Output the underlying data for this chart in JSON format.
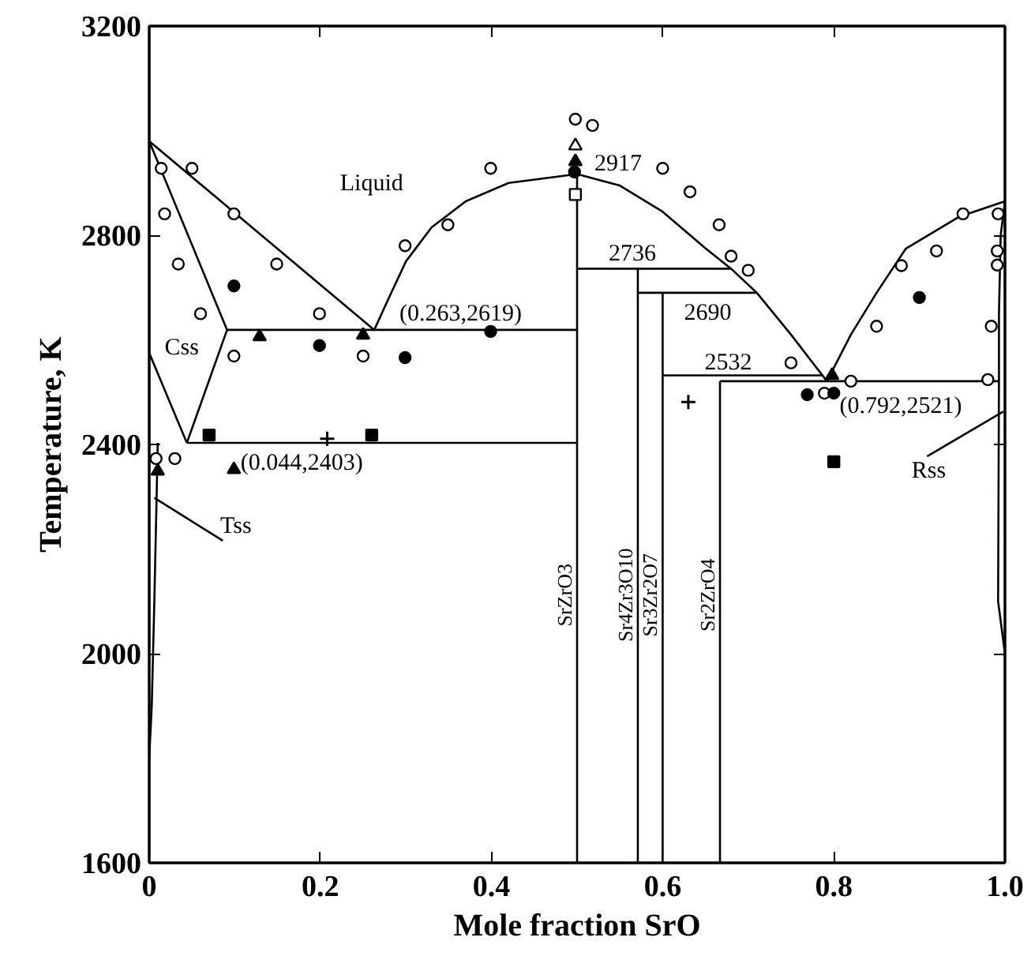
{
  "chart_data": {
    "type": "line",
    "xlabel": "Mole fraction SrO",
    "ylabel": "Temperature, K",
    "xlim": [
      0,
      1.0
    ],
    "ylim": [
      1600,
      3200
    ],
    "xticks": [
      0,
      0.2,
      0.4,
      0.6,
      0.8,
      {
        "value": 1.0,
        "label": "1.0"
      }
    ],
    "yticks": [
      1600,
      2000,
      2400,
      2800,
      3200
    ],
    "series": [
      {
        "color": "#000000",
        "marker": "none",
        "x": [
          0,
          0.263
        ],
        "values": [
          2980,
          2619
        ]
      },
      {
        "color": "#000000",
        "marker": "none",
        "x": [
          0.263,
          0.28,
          0.3,
          0.33,
          0.37,
          0.42,
          0.5,
          0.55,
          0.6,
          0.65,
          0.68,
          0.71,
          0.75,
          0.792
        ],
        "values": [
          2619,
          2680,
          2750,
          2815,
          2865,
          2900,
          2917,
          2895,
          2845,
          2775,
          2736,
          2690,
          2610,
          2521
        ]
      },
      {
        "color": "#000000",
        "marker": "none",
        "x": [
          0.792,
          0.82,
          0.85,
          0.884,
          0.946,
          1.0
        ],
        "values": [
          2521,
          2610,
          2690,
          2774,
          2835,
          2865
        ]
      },
      {
        "color": "#000000",
        "marker": "none",
        "x": [
          0,
          0.091,
          0.044
        ],
        "values": [
          2980,
          2619,
          2403
        ]
      },
      {
        "color": "#000000",
        "marker": "none",
        "x": [
          0,
          0.044
        ],
        "values": [
          2575,
          2403
        ]
      },
      {
        "color": "#000000",
        "marker": "none",
        "x": [
          0.091,
          0.5
        ],
        "values": [
          2619,
          2619
        ]
      },
      {
        "color": "#000000",
        "marker": "none",
        "x": [
          0.044,
          0.5
        ],
        "values": [
          2403,
          2403
        ]
      },
      {
        "color": "#000000",
        "marker": "none",
        "x": [
          0.01,
          0.008,
          0.006,
          0.003,
          0
        ],
        "values": [
          2403,
          2250,
          2100,
          1900,
          1800
        ]
      },
      {
        "color": "#000000",
        "marker": "none",
        "x": [
          0.006,
          0.086
        ],
        "values": [
          2298,
          2216
        ]
      },
      {
        "color": "#000000",
        "marker": "none",
        "name": "SrZrO3",
        "x": [
          0.5,
          0.5
        ],
        "values": [
          1600,
          2917
        ]
      },
      {
        "color": "#000000",
        "marker": "none",
        "x": [
          0.5,
          0.68
        ],
        "values": [
          2736,
          2736
        ]
      },
      {
        "color": "#000000",
        "marker": "none",
        "name": "Sr4Zr3O10",
        "x": [
          0.571,
          0.571
        ],
        "values": [
          1600,
          2736
        ]
      },
      {
        "color": "#000000",
        "marker": "none",
        "x": [
          0.571,
          0.709
        ],
        "values": [
          2690,
          2690
        ]
      },
      {
        "color": "#000000",
        "marker": "none",
        "name": "Sr3Zr2O7",
        "x": [
          0.6,
          0.6
        ],
        "values": [
          1600,
          2690
        ]
      },
      {
        "color": "#000000",
        "marker": "none",
        "x": [
          0.6,
          0.786
        ],
        "values": [
          2532,
          2532
        ]
      },
      {
        "color": "#000000",
        "marker": "none",
        "name": "Sr2ZrO4",
        "x": [
          0.667,
          0.667
        ],
        "values": [
          1600,
          2521
        ]
      },
      {
        "color": "#000000",
        "marker": "none",
        "x": [
          0.667,
          0.993
        ],
        "values": [
          2521,
          2521
        ]
      },
      {
        "color": "#000000",
        "marker": "none",
        "x": [
          1.0,
          0.995,
          0.993,
          0.993,
          0.992,
          1.0
        ],
        "values": [
          2865,
          2800,
          2650,
          2521,
          2100,
          2000
        ]
      },
      {
        "color": "#000000",
        "marker": "none",
        "x": [
          0.909,
          0.998
        ],
        "values": [
          2377,
          2463
        ]
      },
      {
        "type": "scatter",
        "color": "#ffffff",
        "marker": "circle",
        "x": [
          0.014,
          0.05,
          0.018,
          0.099,
          0.034,
          0.149,
          0.06,
          0.199,
          0.099,
          0.25,
          0.299,
          0.349,
          0.399,
          0.008,
          0.03,
          0.498,
          0.518,
          0.6,
          0.632,
          0.666,
          0.68,
          0.7,
          0.75,
          0.789,
          0.82,
          0.85,
          0.879,
          0.92,
          0.951,
          0.992,
          0.991,
          0.991,
          0.984,
          0.98
        ],
        "values": [
          2928,
          2928,
          2841,
          2841,
          2745,
          2745,
          2650,
          2650,
          2569,
          2569,
          2780,
          2820,
          2928,
          2373,
          2373,
          3022,
          3010,
          2928,
          2883,
          2820,
          2760,
          2733,
          2556,
          2498,
          2521,
          2626,
          2742,
          2770,
          2841,
          2841,
          2770,
          2743,
          2626,
          2524
        ]
      },
      {
        "type": "scatter",
        "color": "#000000",
        "marker": "circle",
        "x": [
          0.099,
          0.199,
          0.299,
          0.399,
          0.769,
          0.8,
          0.9,
          0.497
        ],
        "values": [
          2703,
          2589,
          2566,
          2616,
          2495,
          2498,
          2681,
          2921
        ]
      },
      {
        "type": "scatter",
        "color": "#000000",
        "marker": "triangle",
        "x": [
          0.129,
          0.25,
          0.01,
          0.099,
          0.798,
          0.498
        ],
        "values": [
          2606,
          2609,
          2349,
          2352,
          2532,
          2941
        ]
      },
      {
        "type": "scatter",
        "color": "#ffffff",
        "marker": "triangle",
        "x": [
          0.498
        ],
        "values": [
          2971
        ]
      },
      {
        "type": "scatter",
        "color": "#ffffff",
        "marker": "square",
        "x": [
          0.498
        ],
        "values": [
          2878
        ]
      },
      {
        "type": "scatter",
        "color": "#000000",
        "marker": "square",
        "x": [
          0.07,
          0.26,
          0.8
        ],
        "values": [
          2418,
          2418,
          2367
        ]
      },
      {
        "type": "scatter",
        "color": "#000000",
        "marker": "cross",
        "x": [
          0.208,
          0.63
        ],
        "values": [
          2411,
          2481
        ]
      }
    ],
    "annotations": [
      "Liquid",
      "Css",
      {
        "text": "(0.263,2619)",
        "x": 0.263,
        "y": 2619
      },
      {
        "text": "(0.044,2403)",
        "x": 0.044,
        "y": 2403
      },
      {
        "text": "2917",
        "x": 0.5,
        "y": 2917
      },
      {
        "text": "2736",
        "x": 0.537,
        "y": 2736
      },
      {
        "text": "2690",
        "x": 0.625,
        "y": 2690
      },
      {
        "text": "2532",
        "x": 0.649,
        "y": 2532
      },
      {
        "text": "(0.792,2521)",
        "x": 0.792,
        "y": 2521
      },
      "Tss",
      "Rss"
    ]
  }
}
